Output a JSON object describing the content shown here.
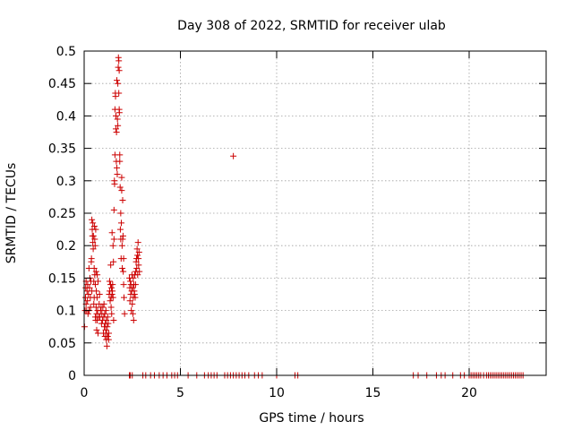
{
  "chart_data": {
    "type": "scatter",
    "title": "Day 308 of 2022, SRMTID for receiver ulab",
    "xlabel": "GPS time / hours",
    "ylabel": "SRMTID / TECUs",
    "xlim": [
      0,
      24
    ],
    "ylim": [
      0,
      0.5
    ],
    "xticks": [
      0,
      5,
      10,
      15,
      20
    ],
    "xtick_labels": [
      "0",
      "5",
      "10",
      "15",
      "20"
    ],
    "yticks": [
      0,
      0.05,
      0.1,
      0.15,
      0.2,
      0.25,
      0.3,
      0.35,
      0.4,
      0.45,
      0.5
    ],
    "ytick_labels": [
      "0",
      "0.05",
      "0.1",
      "0.15",
      "0.2",
      "0.25",
      "0.3",
      "0.35",
      "0.4",
      "0.45",
      "0.5"
    ],
    "grid": true,
    "marker": "+",
    "color": "#cc0000",
    "series": [
      {
        "name": "SRMTID",
        "points": [
          [
            0.02,
            0.075
          ],
          [
            0.05,
            0.1
          ],
          [
            0.07,
            0.12
          ],
          [
            0.08,
            0.135
          ],
          [
            0.1,
            0.145
          ],
          [
            0.1,
            0.11
          ],
          [
            0.13,
            0.1
          ],
          [
            0.15,
            0.13
          ],
          [
            0.17,
            0.115
          ],
          [
            0.18,
            0.14
          ],
          [
            0.2,
            0.095
          ],
          [
            0.22,
            0.125
          ],
          [
            0.25,
            0.165
          ],
          [
            0.26,
            0.1
          ],
          [
            0.28,
            0.135
          ],
          [
            0.3,
            0.15
          ],
          [
            0.32,
            0.12
          ],
          [
            0.33,
            0.105
          ],
          [
            0.35,
            0.145
          ],
          [
            0.37,
            0.175
          ],
          [
            0.38,
            0.18
          ],
          [
            0.4,
            0.13
          ],
          [
            0.4,
            0.24
          ],
          [
            0.42,
            0.225
          ],
          [
            0.43,
            0.215
          ],
          [
            0.45,
            0.205
          ],
          [
            0.45,
            0.235
          ],
          [
            0.47,
            0.195
          ],
          [
            0.48,
            0.215
          ],
          [
            0.5,
            0.145
          ],
          [
            0.5,
            0.11
          ],
          [
            0.52,
            0.12
          ],
          [
            0.52,
            0.165
          ],
          [
            0.53,
            0.23
          ],
          [
            0.55,
            0.21
          ],
          [
            0.55,
            0.155
          ],
          [
            0.57,
            0.2
          ],
          [
            0.58,
            0.09
          ],
          [
            0.58,
            0.14
          ],
          [
            0.6,
            0.225
          ],
          [
            0.6,
            0.085
          ],
          [
            0.62,
            0.16
          ],
          [
            0.62,
            0.105
          ],
          [
            0.63,
            0.13
          ],
          [
            0.65,
            0.07
          ],
          [
            0.65,
            0.095
          ],
          [
            0.67,
            0.12
          ],
          [
            0.68,
            0.085
          ],
          [
            0.68,
            0.155
          ],
          [
            0.7,
            0.1
          ],
          [
            0.72,
            0.145
          ],
          [
            0.72,
            0.065
          ],
          [
            0.75,
            0.09
          ],
          [
            0.78,
            0.11
          ],
          [
            0.8,
            0.125
          ],
          [
            0.82,
            0.09
          ],
          [
            0.85,
            0.1
          ],
          [
            0.88,
            0.105
          ],
          [
            0.9,
            0.08
          ],
          [
            0.92,
            0.095
          ],
          [
            0.95,
            0.085
          ],
          [
            0.97,
            0.105
          ],
          [
            1.0,
            0.065
          ],
          [
            1.02,
            0.09
          ],
          [
            1.03,
            0.11
          ],
          [
            1.05,
            0.075
          ],
          [
            1.07,
            0.095
          ],
          [
            1.08,
            0.06
          ],
          [
            1.1,
            0.08
          ],
          [
            1.12,
            0.07
          ],
          [
            1.13,
            0.1
          ],
          [
            1.15,
            0.055
          ],
          [
            1.15,
            0.085
          ],
          [
            1.17,
            0.065
          ],
          [
            1.18,
            0.045
          ],
          [
            1.2,
            0.075
          ],
          [
            1.22,
            0.06
          ],
          [
            1.22,
            0.09
          ],
          [
            1.25,
            0.08
          ],
          [
            1.27,
            0.055
          ],
          [
            1.28,
            0.065
          ],
          [
            1.3,
            0.125
          ],
          [
            1.32,
            0.145
          ],
          [
            1.33,
            0.13
          ],
          [
            1.35,
            0.115
          ],
          [
            1.37,
            0.14
          ],
          [
            1.38,
            0.17
          ],
          [
            1.4,
            0.105
          ],
          [
            1.4,
            0.12
          ],
          [
            1.42,
            0.135
          ],
          [
            1.43,
            0.095
          ],
          [
            1.45,
            0.125
          ],
          [
            1.45,
            0.22
          ],
          [
            1.47,
            0.13
          ],
          [
            1.48,
            0.14
          ],
          [
            1.5,
            0.12
          ],
          [
            1.5,
            0.2
          ],
          [
            1.52,
            0.175
          ],
          [
            1.53,
            0.085
          ],
          [
            1.55,
            0.21
          ],
          [
            1.55,
            0.255
          ],
          [
            1.57,
            0.3
          ],
          [
            1.58,
            0.295
          ],
          [
            1.6,
            0.34
          ],
          [
            1.6,
            0.41
          ],
          [
            1.62,
            0.435
          ],
          [
            1.63,
            0.43
          ],
          [
            1.65,
            0.4
          ],
          [
            1.65,
            0.38
          ],
          [
            1.67,
            0.33
          ],
          [
            1.68,
            0.375
          ],
          [
            1.7,
            0.455
          ],
          [
            1.7,
            0.32
          ],
          [
            1.72,
            0.31
          ],
          [
            1.73,
            0.395
          ],
          [
            1.75,
            0.45
          ],
          [
            1.75,
            0.385
          ],
          [
            1.77,
            0.475
          ],
          [
            1.78,
            0.49
          ],
          [
            1.8,
            0.485
          ],
          [
            1.8,
            0.435
          ],
          [
            1.82,
            0.47
          ],
          [
            1.82,
            0.41
          ],
          [
            1.83,
            0.405
          ],
          [
            1.85,
            0.33
          ],
          [
            1.85,
            0.34
          ],
          [
            1.87,
            0.29
          ],
          [
            1.88,
            0.225
          ],
          [
            1.9,
            0.21
          ],
          [
            1.9,
            0.25
          ],
          [
            1.92,
            0.18
          ],
          [
            1.93,
            0.235
          ],
          [
            1.95,
            0.285
          ],
          [
            1.95,
            0.305
          ],
          [
            1.97,
            0.2
          ],
          [
            1.98,
            0.165
          ],
          [
            2.0,
            0.21
          ],
          [
            2.0,
            0.27
          ],
          [
            2.02,
            0.215
          ],
          [
            2.03,
            0.16
          ],
          [
            2.05,
            0.18
          ],
          [
            2.05,
            0.14
          ],
          [
            2.07,
            0.12
          ],
          [
            2.1,
            0.095
          ],
          [
            2.35,
            0.15
          ],
          [
            2.37,
            0.135
          ],
          [
            2.38,
            0.115
          ],
          [
            2.4,
            0.145
          ],
          [
            2.42,
            0.125
          ],
          [
            2.43,
            0.14
          ],
          [
            2.45,
            0.1
          ],
          [
            2.47,
            0.13
          ],
          [
            2.48,
            0.155
          ],
          [
            2.5,
            0.11
          ],
          [
            2.52,
            0.135
          ],
          [
            2.53,
            0.095
          ],
          [
            2.55,
            0.12
          ],
          [
            2.55,
            0.15
          ],
          [
            2.57,
            0.085
          ],
          [
            2.58,
            0.14
          ],
          [
            2.6,
            0.13
          ],
          [
            2.62,
            0.125
          ],
          [
            2.63,
            0.155
          ],
          [
            2.65,
            0.12
          ],
          [
            2.67,
            0.14
          ],
          [
            2.68,
            0.16
          ],
          [
            2.7,
            0.175
          ],
          [
            2.72,
            0.18
          ],
          [
            2.73,
            0.165
          ],
          [
            2.75,
            0.195
          ],
          [
            2.77,
            0.185
          ],
          [
            2.78,
            0.155
          ],
          [
            2.8,
            0.205
          ],
          [
            2.82,
            0.18
          ],
          [
            2.83,
            0.17
          ],
          [
            2.85,
            0.19
          ],
          [
            2.87,
            0.16
          ],
          [
            7.75,
            0.338
          ],
          [
            2.35,
            0
          ],
          [
            2.4,
            0
          ],
          [
            2.5,
            0
          ],
          [
            3.05,
            0
          ],
          [
            3.2,
            0
          ],
          [
            3.45,
            0
          ],
          [
            3.65,
            0
          ],
          [
            3.9,
            0
          ],
          [
            4.1,
            0
          ],
          [
            4.3,
            0
          ],
          [
            4.55,
            0
          ],
          [
            4.7,
            0
          ],
          [
            4.85,
            0
          ],
          [
            5.4,
            0
          ],
          [
            5.85,
            0
          ],
          [
            6.25,
            0
          ],
          [
            6.45,
            0
          ],
          [
            6.6,
            0
          ],
          [
            6.75,
            0
          ],
          [
            6.9,
            0
          ],
          [
            7.3,
            0
          ],
          [
            7.45,
            0
          ],
          [
            7.6,
            0
          ],
          [
            7.75,
            0
          ],
          [
            7.9,
            0
          ],
          [
            8.05,
            0
          ],
          [
            8.2,
            0
          ],
          [
            8.35,
            0
          ],
          [
            8.55,
            0
          ],
          [
            8.85,
            0
          ],
          [
            9.05,
            0
          ],
          [
            9.25,
            0
          ],
          [
            10.0,
            0
          ],
          [
            10.95,
            0
          ],
          [
            11.1,
            0
          ],
          [
            17.1,
            0
          ],
          [
            17.35,
            0
          ],
          [
            17.8,
            0
          ],
          [
            18.3,
            0
          ],
          [
            18.55,
            0
          ],
          [
            18.75,
            0
          ],
          [
            19.15,
            0
          ],
          [
            19.55,
            0
          ],
          [
            19.75,
            0
          ],
          [
            20.0,
            0
          ],
          [
            20.1,
            0
          ],
          [
            20.2,
            0
          ],
          [
            20.3,
            0
          ],
          [
            20.4,
            0
          ],
          [
            20.5,
            0
          ],
          [
            20.6,
            0
          ],
          [
            20.75,
            0
          ],
          [
            20.9,
            0
          ],
          [
            21.0,
            0
          ],
          [
            21.1,
            0
          ],
          [
            21.2,
            0
          ],
          [
            21.3,
            0
          ],
          [
            21.4,
            0
          ],
          [
            21.5,
            0
          ],
          [
            21.6,
            0
          ],
          [
            21.7,
            0
          ],
          [
            21.8,
            0
          ],
          [
            21.9,
            0
          ],
          [
            22.0,
            0
          ],
          [
            22.1,
            0
          ],
          [
            22.2,
            0
          ],
          [
            22.3,
            0
          ],
          [
            22.4,
            0
          ],
          [
            22.5,
            0
          ],
          [
            22.6,
            0
          ],
          [
            22.7,
            0
          ],
          [
            22.8,
            0
          ]
        ]
      }
    ]
  }
}
